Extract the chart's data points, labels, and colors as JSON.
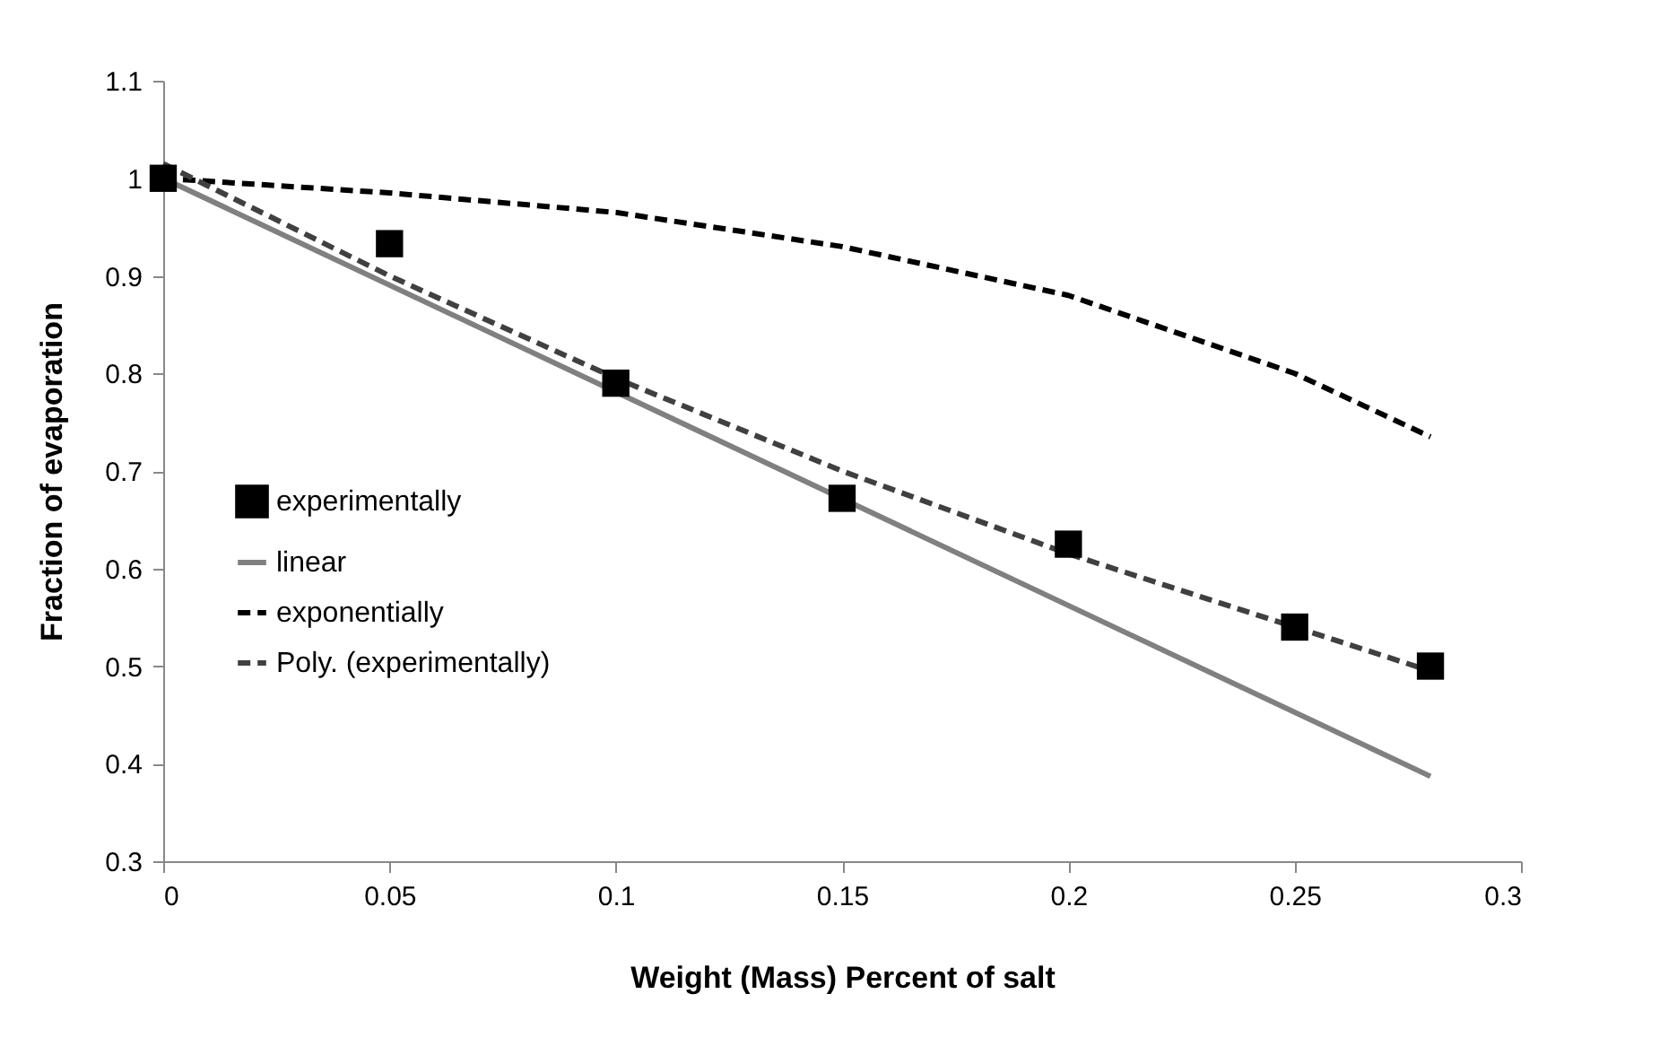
{
  "chart_data": {
    "type": "scatter",
    "xlabel": "Weight (Mass) Percent of salt",
    "ylabel": "Fraction of evaporation",
    "xlim": [
      0,
      0.3
    ],
    "xticks": [
      0,
      0.05,
      0.1,
      0.15,
      0.2,
      0.25,
      0.3
    ],
    "ylim": [
      0.3,
      1.1
    ],
    "yticks": [
      0.3,
      0.4,
      0.5,
      0.6,
      0.7,
      0.8,
      0.9,
      1,
      1.1
    ],
    "grid": false,
    "legend": "left",
    "series": [
      {
        "name": "experimentally",
        "type": "scatter",
        "marker": "square",
        "color": "#000000",
        "x": [
          0,
          0.05,
          0.1,
          0.15,
          0.2,
          0.25,
          0.28
        ],
        "values": [
          1.0,
          0.933,
          0.79,
          0.672,
          0.625,
          0.54,
          0.5
        ]
      },
      {
        "name": "linear",
        "type": "line",
        "marker": "none",
        "line_style": "solid",
        "color": "#808080",
        "x": [
          0,
          0.28
        ],
        "values": [
          1.0,
          0.387
        ]
      },
      {
        "name": "exponentially",
        "type": "line",
        "marker": "none",
        "line_style": "dashed",
        "color": "#000000",
        "x": [
          0,
          0.05,
          0.1,
          0.15,
          0.2,
          0.25,
          0.28
        ],
        "values": [
          1.0,
          0.985,
          0.965,
          0.93,
          0.88,
          0.8,
          0.735
        ]
      },
      {
        "name": "Poly. (experimentally)",
        "type": "line",
        "marker": "none",
        "line_style": "dashed",
        "color": "#404040",
        "x": [
          0,
          0.05,
          0.1,
          0.15,
          0.2,
          0.25,
          0.28
        ],
        "values": [
          1.015,
          0.9,
          0.795,
          0.7,
          0.615,
          0.54,
          0.495
        ]
      }
    ]
  }
}
